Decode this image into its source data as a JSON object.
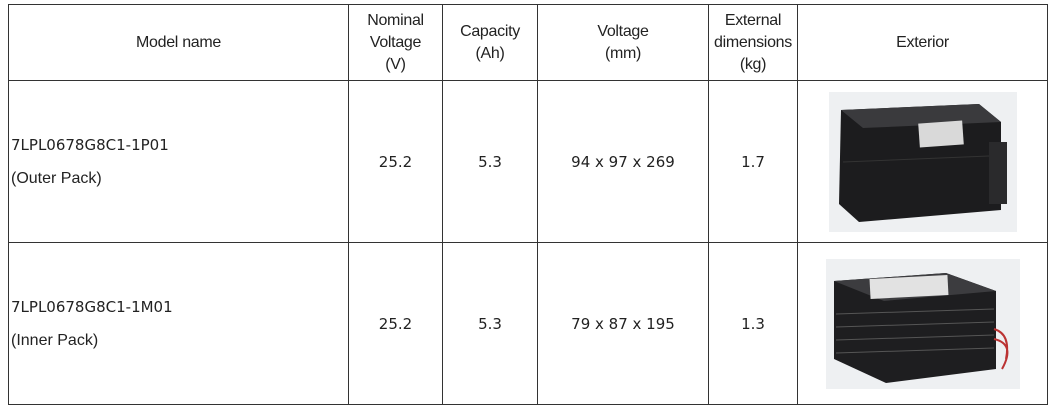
{
  "table": {
    "header": [
      [
        "Model name"
      ],
      [
        "Nominal",
        "Voltage",
        "(V)"
      ],
      [
        "Capacity",
        "(Ah)"
      ],
      [
        "Voltage",
        "(mm)"
      ],
      [
        "External",
        "dimensions",
        "(kg)"
      ],
      [
        "Exterior"
      ]
    ],
    "rows": [
      [
        [
          "7LPL0678G8C1-1P01",
          "(Outer Pack)"
        ],
        25.2,
        5.3,
        "94 x 97 x 269",
        1.7
      ],
      [
        [
          "7LPL0678G8C1-1M01",
          "(Inner Pack)"
        ],
        25.2,
        5.3,
        "79 x 87 x 195",
        1.3
      ]
    ]
  }
}
